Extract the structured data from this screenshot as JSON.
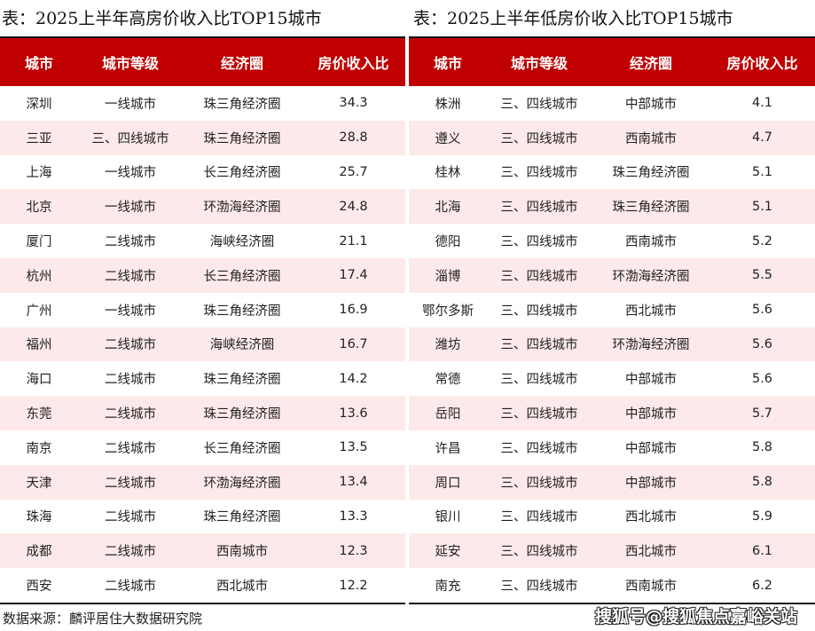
{
  "left": {
    "title": "表：2025上半年高房价收入比TOP15城市",
    "headers": [
      "城市",
      "城市等级",
      "经济圈",
      "房价收入比"
    ],
    "rows": [
      [
        "深圳",
        "一线城市",
        "珠三角经济圈",
        "34.3"
      ],
      [
        "三亚",
        "三、四线城市",
        "珠三角经济圈",
        "28.8"
      ],
      [
        "上海",
        "一线城市",
        "长三角经济圈",
        "25.7"
      ],
      [
        "北京",
        "一线城市",
        "环渤海经济圈",
        "24.8"
      ],
      [
        "厦门",
        "二线城市",
        "海峡经济圈",
        "21.1"
      ],
      [
        "杭州",
        "二线城市",
        "长三角经济圈",
        "17.4"
      ],
      [
        "广州",
        "一线城市",
        "珠三角经济圈",
        "16.9"
      ],
      [
        "福州",
        "二线城市",
        "海峡经济圈",
        "16.7"
      ],
      [
        "海口",
        "二线城市",
        "珠三角经济圈",
        "14.2"
      ],
      [
        "东莞",
        "二线城市",
        "珠三角经济圈",
        "13.6"
      ],
      [
        "南京",
        "二线城市",
        "长三角经济圈",
        "13.5"
      ],
      [
        "天津",
        "二线城市",
        "环渤海经济圈",
        "13.4"
      ],
      [
        "珠海",
        "二线城市",
        "珠三角经济圈",
        "13.3"
      ],
      [
        "成都",
        "二线城市",
        "西南城市",
        "12.3"
      ],
      [
        "西安",
        "二线城市",
        "西北城市",
        "12.2"
      ]
    ]
  },
  "right": {
    "title": "表：2025上半年低房价收入比TOP15城市",
    "headers": [
      "城市",
      "城市等级",
      "经济圈",
      "房价收入比"
    ],
    "rows": [
      [
        "株洲",
        "三、四线城市",
        "中部城市",
        "4.1"
      ],
      [
        "遵义",
        "三、四线城市",
        "西南城市",
        "4.7"
      ],
      [
        "桂林",
        "三、四线城市",
        "珠三角经济圈",
        "5.1"
      ],
      [
        "北海",
        "三、四线城市",
        "珠三角经济圈",
        "5.1"
      ],
      [
        "德阳",
        "三、四线城市",
        "西南城市",
        "5.2"
      ],
      [
        "淄博",
        "三、四线城市",
        "环渤海经济圈",
        "5.5"
      ],
      [
        "鄂尔多斯",
        "三、四线城市",
        "西北城市",
        "5.6"
      ],
      [
        "潍坊",
        "三、四线城市",
        "环渤海经济圈",
        "5.6"
      ],
      [
        "常德",
        "三、四线城市",
        "中部城市",
        "5.6"
      ],
      [
        "岳阳",
        "三、四线城市",
        "中部城市",
        "5.7"
      ],
      [
        "许昌",
        "三、四线城市",
        "中部城市",
        "5.8"
      ],
      [
        "周口",
        "三、四线城市",
        "中部城市",
        "5.8"
      ],
      [
        "银川",
        "三、四线城市",
        "西北城市",
        "5.9"
      ],
      [
        "延安",
        "三、四线城市",
        "西北城市",
        "6.1"
      ],
      [
        "南充",
        "三、四线城市",
        "西南城市",
        "6.2"
      ]
    ]
  },
  "source": "数据来源：麟评居住大数据研究院",
  "watermark": "搜狐号@搜狐焦点嘉峪关站",
  "colors": {
    "header": "#c00000",
    "stripe": "#fde9e9"
  }
}
